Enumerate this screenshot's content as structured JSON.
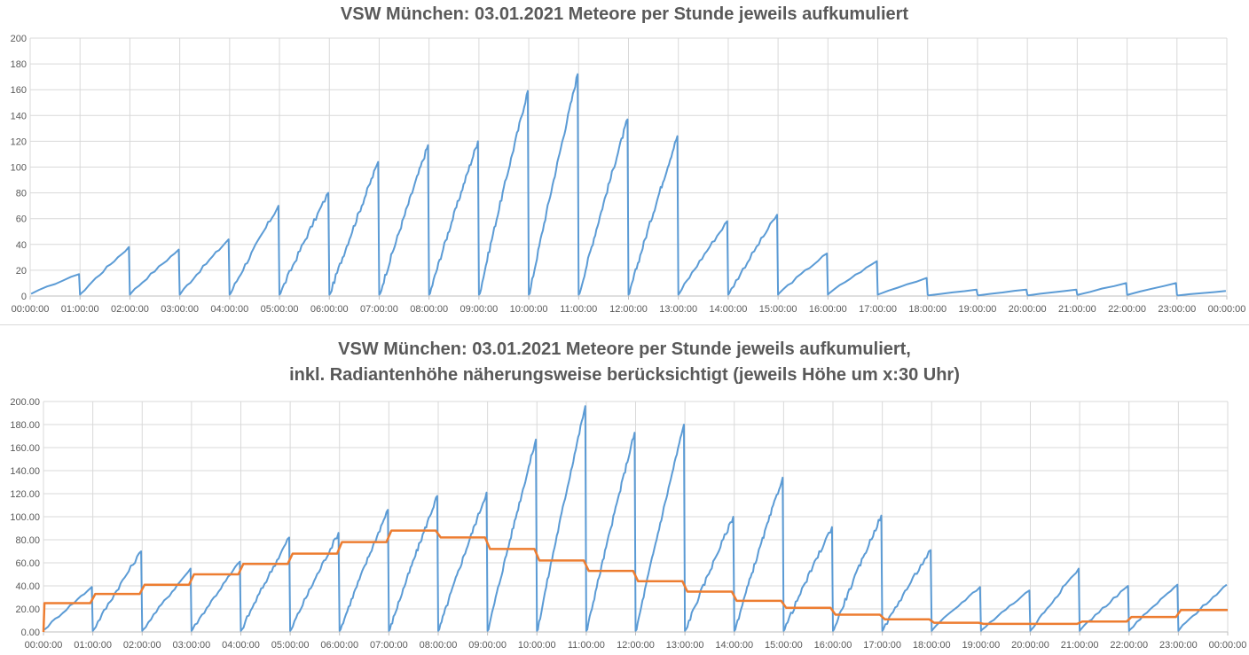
{
  "chart_data": [
    {
      "type": "line",
      "title": "VSW München: 03.01.2021 Meteore per Stunde jeweils aufkumuliert",
      "xlabel": "",
      "ylabel": "",
      "ylim": [
        0,
        200
      ],
      "y_ticks": [
        "0",
        "20",
        "40",
        "60",
        "80",
        "100",
        "120",
        "140",
        "160",
        "180",
        "200"
      ],
      "x_ticks": [
        "00:00:00",
        "01:00:00",
        "02:00:00",
        "03:00:00",
        "04:00:00",
        "05:00:00",
        "06:00:00",
        "07:00:00",
        "08:00:00",
        "09:00:00",
        "10:00:00",
        "11:00:00",
        "12:00:00",
        "13:00:00",
        "14:00:00",
        "15:00:00",
        "16:00:00",
        "17:00:00",
        "18:00:00",
        "19:00:00",
        "20:00:00",
        "21:00:00",
        "22:00:00",
        "23:00:00",
        "00:00:00"
      ],
      "grid": true,
      "legend": "none",
      "series": [
        {
          "color": "#5B9BD5",
          "hourly_peaks": [
            17,
            38,
            36,
            44,
            70,
            80,
            104,
            117,
            120,
            159,
            172,
            137,
            124,
            58,
            63,
            33,
            27,
            14,
            5,
            5,
            5,
            10,
            10,
            4
          ]
        }
      ]
    },
    {
      "type": "line",
      "title": "VSW München: 03.01.2021 Meteore per Stunde jeweils aufkumuliert,",
      "subtitle": "inkl. Radiantenhöhe näherungsweise berücksichtigt (jeweils Höhe um x:30 Uhr)",
      "xlabel": "",
      "ylabel": "",
      "ylim": [
        0,
        200
      ],
      "y_ticks": [
        "0.00",
        "20.00",
        "40.00",
        "60.00",
        "80.00",
        "100.00",
        "120.00",
        "140.00",
        "160.00",
        "180.00",
        "200.00"
      ],
      "x_ticks": [
        "00:00:00",
        "01:00:00",
        "02:00:00",
        "03:00:00",
        "04:00:00",
        "05:00:00",
        "06:00:00",
        "07:00:00",
        "08:00:00",
        "09:00:00",
        "10:00:00",
        "11:00:00",
        "12:00:00",
        "13:00:00",
        "14:00:00",
        "15:00:00",
        "16:00:00",
        "17:00:00",
        "18:00:00",
        "19:00:00",
        "20:00:00",
        "21:00:00",
        "22:00:00",
        "23:00:00",
        "00:00:00"
      ],
      "grid": true,
      "legend": "none",
      "series": [
        {
          "color": "#5B9BD5",
          "hourly_peaks": [
            39,
            70,
            55,
            61,
            82,
            86,
            106,
            118,
            121,
            167,
            196,
            173,
            180,
            100,
            134,
            91,
            101,
            71,
            39,
            36,
            55,
            40,
            41,
            41
          ]
        },
        {
          "color": "#ED7D31",
          "hourly_steps": [
            25,
            33,
            41,
            50,
            59,
            68,
            78,
            88,
            82,
            72,
            62,
            53,
            44,
            35,
            27,
            21,
            15,
            11,
            8,
            7,
            7,
            9,
            13,
            19
          ]
        }
      ]
    }
  ]
}
